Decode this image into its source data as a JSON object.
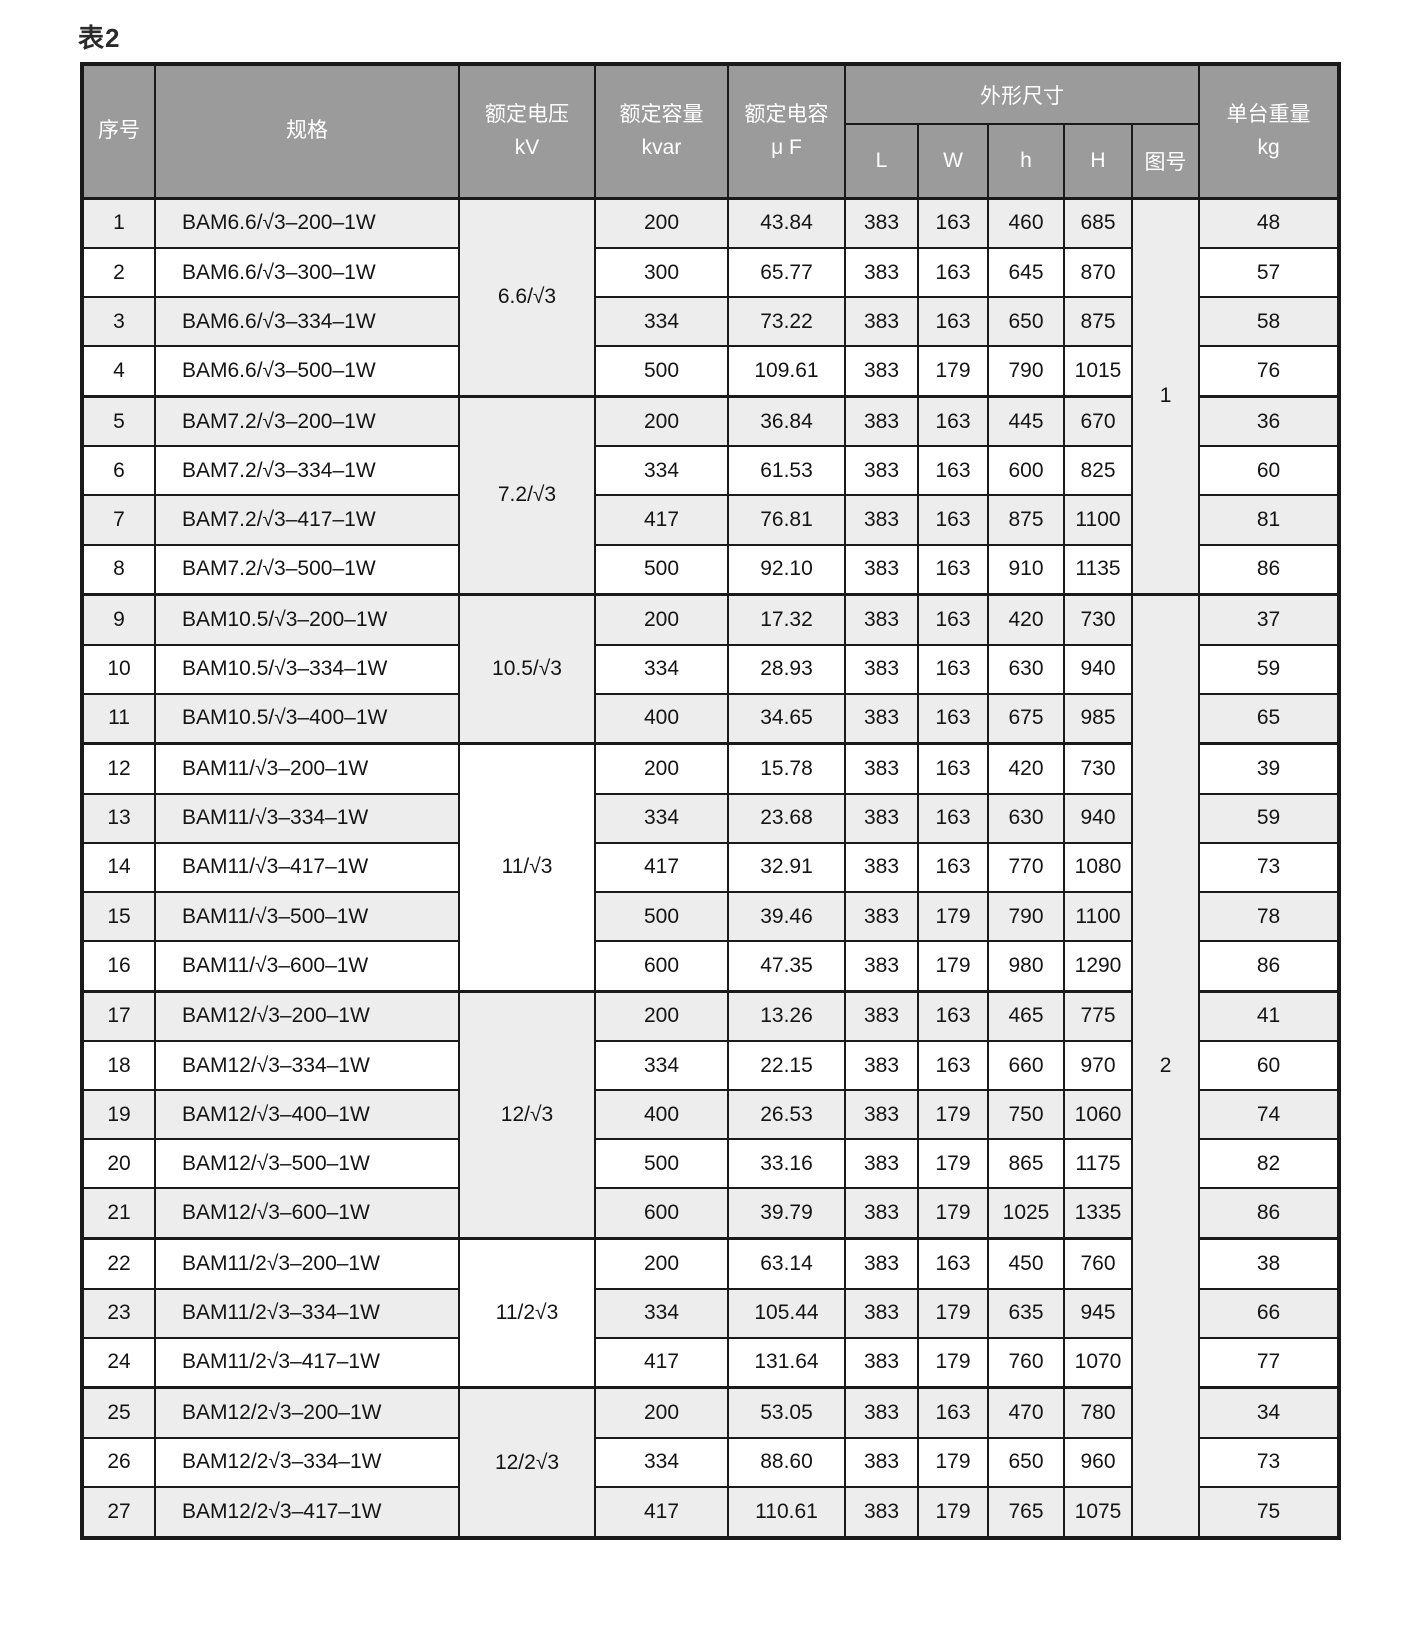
{
  "page": {
    "title": "表2"
  },
  "table": {
    "header": {
      "serial": "序号",
      "spec": "规格",
      "voltage_label": "额定电压",
      "voltage_unit": "kV",
      "capacity_label": "额定容量",
      "capacity_unit": "kvar",
      "capacitance_label": "额定电容",
      "capacitance_unit": "μ F",
      "dimensions_label": "外形尺寸",
      "dim_cols": [
        "L",
        "W",
        "h",
        "H"
      ],
      "figure_label": "图号",
      "weight_label": "单台重量",
      "weight_unit": "kg"
    },
    "voltage_cells": [
      {
        "row": 1,
        "span": 4,
        "label": "6.6/√3"
      },
      {
        "row": 5,
        "span": 4,
        "label": "7.2/√3"
      },
      {
        "row": 9,
        "span": 3,
        "label": "10.5/√3"
      },
      {
        "row": 12,
        "span": 5,
        "label": "11/√3"
      },
      {
        "row": 17,
        "span": 5,
        "label": "12/√3"
      },
      {
        "row": 22,
        "span": 3,
        "label": "11/2√3"
      },
      {
        "row": 25,
        "span": 3,
        "label": "12/2√3"
      }
    ],
    "figure_cells": [
      {
        "row": 1,
        "span": 8,
        "label": "1"
      },
      {
        "row": 9,
        "span": 19,
        "label": "2"
      }
    ],
    "group_start_rows": [
      5,
      9,
      12,
      17,
      22,
      25
    ],
    "rows": [
      {
        "no": "1",
        "spec": "BAM6.6/√3–200–1W",
        "kvar": "200",
        "uf": "43.84",
        "L": "383",
        "W": "163",
        "h": "460",
        "H": "685",
        "kg": "48"
      },
      {
        "no": "2",
        "spec": "BAM6.6/√3–300–1W",
        "kvar": "300",
        "uf": "65.77",
        "L": "383",
        "W": "163",
        "h": "645",
        "H": "870",
        "kg": "57"
      },
      {
        "no": "3",
        "spec": "BAM6.6/√3–334–1W",
        "kvar": "334",
        "uf": "73.22",
        "L": "383",
        "W": "163",
        "h": "650",
        "H": "875",
        "kg": "58"
      },
      {
        "no": "4",
        "spec": "BAM6.6/√3–500–1W",
        "kvar": "500",
        "uf": "109.61",
        "L": "383",
        "W": "179",
        "h": "790",
        "H": "1015",
        "kg": "76"
      },
      {
        "no": "5",
        "spec": "BAM7.2/√3–200–1W",
        "kvar": "200",
        "uf": "36.84",
        "L": "383",
        "W": "163",
        "h": "445",
        "H": "670",
        "kg": "36"
      },
      {
        "no": "6",
        "spec": "BAM7.2/√3–334–1W",
        "kvar": "334",
        "uf": "61.53",
        "L": "383",
        "W": "163",
        "h": "600",
        "H": "825",
        "kg": "60"
      },
      {
        "no": "7",
        "spec": "BAM7.2/√3–417–1W",
        "kvar": "417",
        "uf": "76.81",
        "L": "383",
        "W": "163",
        "h": "875",
        "H": "1100",
        "kg": "81"
      },
      {
        "no": "8",
        "spec": "BAM7.2/√3–500–1W",
        "kvar": "500",
        "uf": "92.10",
        "L": "383",
        "W": "163",
        "h": "910",
        "H": "1135",
        "kg": "86"
      },
      {
        "no": "9",
        "spec": "BAM10.5/√3–200–1W",
        "kvar": "200",
        "uf": "17.32",
        "L": "383",
        "W": "163",
        "h": "420",
        "H": "730",
        "kg": "37"
      },
      {
        "no": "10",
        "spec": "BAM10.5/√3–334–1W",
        "kvar": "334",
        "uf": "28.93",
        "L": "383",
        "W": "163",
        "h": "630",
        "H": "940",
        "kg": "59"
      },
      {
        "no": "11",
        "spec": "BAM10.5/√3–400–1W",
        "kvar": "400",
        "uf": "34.65",
        "L": "383",
        "W": "163",
        "h": "675",
        "H": "985",
        "kg": "65"
      },
      {
        "no": "12",
        "spec": "BAM11/√3–200–1W",
        "kvar": "200",
        "uf": "15.78",
        "L": "383",
        "W": "163",
        "h": "420",
        "H": "730",
        "kg": "39"
      },
      {
        "no": "13",
        "spec": "BAM11/√3–334–1W",
        "kvar": "334",
        "uf": "23.68",
        "L": "383",
        "W": "163",
        "h": "630",
        "H": "940",
        "kg": "59"
      },
      {
        "no": "14",
        "spec": "BAM11/√3–417–1W",
        "kvar": "417",
        "uf": "32.91",
        "L": "383",
        "W": "163",
        "h": "770",
        "H": "1080",
        "kg": "73"
      },
      {
        "no": "15",
        "spec": "BAM11/√3–500–1W",
        "kvar": "500",
        "uf": "39.46",
        "L": "383",
        "W": "179",
        "h": "790",
        "H": "1100",
        "kg": "78"
      },
      {
        "no": "16",
        "spec": "BAM11/√3–600–1W",
        "kvar": "600",
        "uf": "47.35",
        "L": "383",
        "W": "179",
        "h": "980",
        "H": "1290",
        "kg": "86"
      },
      {
        "no": "17",
        "spec": "BAM12/√3–200–1W",
        "kvar": "200",
        "uf": "13.26",
        "L": "383",
        "W": "163",
        "h": "465",
        "H": "775",
        "kg": "41"
      },
      {
        "no": "18",
        "spec": "BAM12/√3–334–1W",
        "kvar": "334",
        "uf": "22.15",
        "L": "383",
        "W": "163",
        "h": "660",
        "H": "970",
        "kg": "60"
      },
      {
        "no": "19",
        "spec": "BAM12/√3–400–1W",
        "kvar": "400",
        "uf": "26.53",
        "L": "383",
        "W": "179",
        "h": "750",
        "H": "1060",
        "kg": "74"
      },
      {
        "no": "20",
        "spec": "BAM12/√3–500–1W",
        "kvar": "500",
        "uf": "33.16",
        "L": "383",
        "W": "179",
        "h": "865",
        "H": "1175",
        "kg": "82"
      },
      {
        "no": "21",
        "spec": "BAM12/√3–600–1W",
        "kvar": "600",
        "uf": "39.79",
        "L": "383",
        "W": "179",
        "h": "1025",
        "H": "1335",
        "kg": "86"
      },
      {
        "no": "22",
        "spec": "BAM11/2√3–200–1W",
        "kvar": "200",
        "uf": "63.14",
        "L": "383",
        "W": "163",
        "h": "450",
        "H": "760",
        "kg": "38"
      },
      {
        "no": "23",
        "spec": "BAM11/2√3–334–1W",
        "kvar": "334",
        "uf": "105.44",
        "L": "383",
        "W": "179",
        "h": "635",
        "H": "945",
        "kg": "66"
      },
      {
        "no": "24",
        "spec": "BAM11/2√3–417–1W",
        "kvar": "417",
        "uf": "131.64",
        "L": "383",
        "W": "179",
        "h": "760",
        "H": "1070",
        "kg": "77"
      },
      {
        "no": "25",
        "spec": "BAM12/2√3–200–1W",
        "kvar": "200",
        "uf": "53.05",
        "L": "383",
        "W": "163",
        "h": "470",
        "H": "780",
        "kg": "34"
      },
      {
        "no": "26",
        "spec": "BAM12/2√3–334–1W",
        "kvar": "334",
        "uf": "88.60",
        "L": "383",
        "W": "179",
        "h": "650",
        "H": "960",
        "kg": "73"
      },
      {
        "no": "27",
        "spec": "BAM12/2√3–417–1W",
        "kvar": "417",
        "uf": "110.61",
        "L": "383",
        "W": "179",
        "h": "765",
        "H": "1075",
        "kg": "75"
      }
    ],
    "colors": {
      "header_bg": "#9b9b9b",
      "header_text": "#ffffff",
      "row_alt_bg": "#ededed",
      "border": "#1a1a1a"
    }
  }
}
